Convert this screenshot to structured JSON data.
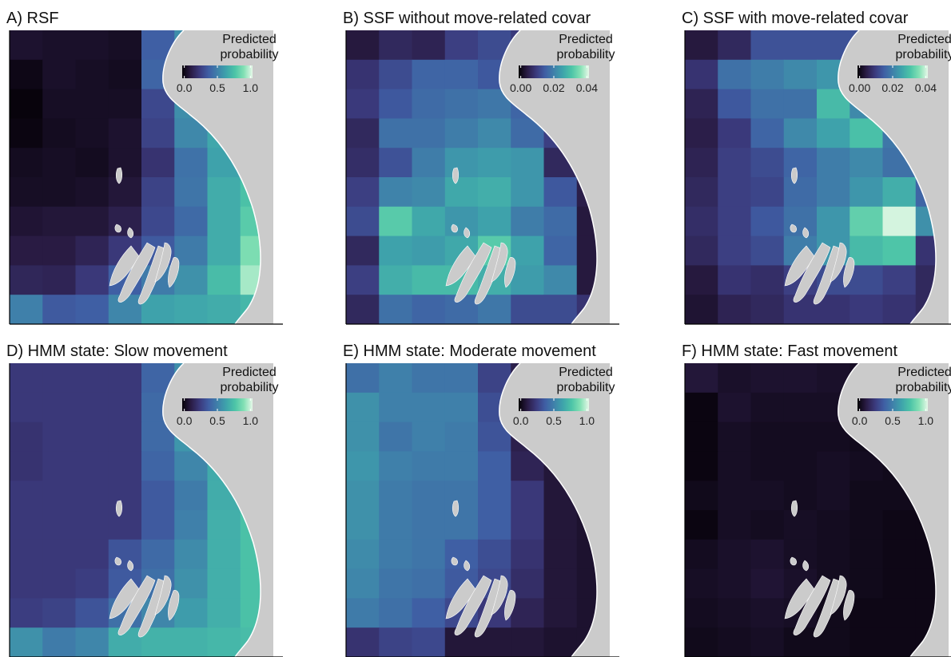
{
  "colors": {
    "land": "#cbcbcb",
    "coast_line": "#ffffff",
    "axis": "#000000",
    "colormap": [
      "#050107",
      "#2a1c45",
      "#3b3a7d",
      "#3f5ea4",
      "#3f80aa",
      "#3ea3ab",
      "#4cc4a7",
      "#82e0b4",
      "#e6f8e8"
    ]
  },
  "chart_data": [
    {
      "type": "heatmap",
      "title": "A) RSF",
      "legend": {
        "title": [
          "Predicted",
          "probability"
        ],
        "ticks": [
          "0.0",
          "0.5",
          "1.0"
        ],
        "range": [
          0,
          1
        ],
        "placement": "top-right"
      },
      "values": [
        [
          0.08,
          0.07,
          0.07,
          0.06,
          0.38,
          0.55,
          null,
          null
        ],
        [
          0.03,
          0.07,
          0.06,
          0.05,
          0.4,
          0.55,
          null,
          null
        ],
        [
          0.01,
          0.06,
          0.06,
          0.06,
          0.3,
          0.55,
          null,
          null
        ],
        [
          0.02,
          0.05,
          0.06,
          0.08,
          0.28,
          0.53,
          0.64,
          null
        ],
        [
          0.05,
          0.06,
          0.05,
          0.08,
          0.22,
          0.45,
          0.62,
          0.72
        ],
        [
          0.06,
          0.06,
          0.07,
          0.1,
          0.28,
          0.46,
          0.66,
          0.74
        ],
        [
          0.09,
          0.1,
          0.1,
          0.14,
          0.3,
          0.42,
          0.66,
          0.78
        ],
        [
          0.12,
          0.12,
          0.16,
          0.24,
          0.36,
          0.48,
          0.66,
          0.86
        ],
        [
          0.17,
          0.16,
          0.24,
          0.38,
          0.48,
          0.56,
          0.72,
          0.92
        ],
        [
          0.5,
          0.36,
          0.38,
          0.52,
          0.62,
          0.64,
          0.66,
          0.7
        ]
      ]
    },
    {
      "type": "heatmap",
      "title": "B) SSF without move-related covar",
      "legend": {
        "title": [
          "Predicted",
          "probability"
        ],
        "ticks": [
          "0.00",
          "0.02",
          "0.04"
        ],
        "range": [
          0,
          0.045
        ],
        "placement": "top-right"
      },
      "values": [
        [
          0.005,
          0.008,
          0.007,
          0.012,
          0.014,
          0.011,
          null,
          null
        ],
        [
          0.01,
          0.014,
          0.018,
          0.018,
          0.016,
          0.012,
          null,
          null
        ],
        [
          0.011,
          0.016,
          0.019,
          0.02,
          0.021,
          0.018,
          null,
          null
        ],
        [
          0.008,
          0.02,
          0.02,
          0.022,
          0.024,
          0.019,
          0.012,
          null
        ],
        [
          0.009,
          0.015,
          0.022,
          0.026,
          0.027,
          0.026,
          0.008,
          null
        ],
        [
          0.012,
          0.023,
          0.024,
          0.029,
          0.03,
          0.026,
          0.016,
          0.006
        ],
        [
          0.014,
          0.035,
          0.029,
          0.026,
          0.028,
          0.022,
          0.019,
          0.005
        ],
        [
          0.008,
          0.028,
          0.027,
          0.029,
          0.035,
          0.028,
          0.018,
          0.005
        ],
        [
          0.012,
          0.03,
          0.032,
          0.032,
          0.03,
          0.027,
          0.024,
          0.005
        ],
        [
          0.008,
          0.02,
          0.018,
          0.019,
          0.021,
          0.014,
          0.014,
          0.01
        ]
      ]
    },
    {
      "type": "heatmap",
      "title": "C) SSF with move-related covar",
      "legend": {
        "title": [
          "Predicted",
          "probability"
        ],
        "ticks": [
          "0.00",
          "0.02",
          "0.04"
        ],
        "range": [
          0,
          0.045
        ],
        "placement": "top-right"
      },
      "values": [
        [
          0.005,
          0.008,
          0.015,
          0.015,
          0.015,
          0.015,
          null,
          null
        ],
        [
          0.01,
          0.02,
          0.022,
          0.024,
          0.026,
          0.018,
          null,
          null
        ],
        [
          0.007,
          0.016,
          0.02,
          0.02,
          0.032,
          0.024,
          0.016,
          null
        ],
        [
          0.006,
          0.011,
          0.018,
          0.024,
          0.028,
          0.033,
          0.021,
          null
        ],
        [
          0.007,
          0.012,
          0.014,
          0.018,
          0.022,
          0.024,
          0.02,
          0.008
        ],
        [
          0.008,
          0.012,
          0.013,
          0.019,
          0.022,
          0.026,
          0.03,
          0.018
        ],
        [
          0.009,
          0.012,
          0.016,
          0.02,
          0.026,
          0.036,
          0.044,
          0.025
        ],
        [
          0.008,
          0.012,
          0.014,
          0.022,
          0.026,
          0.032,
          0.034,
          0.01
        ],
        [
          0.005,
          0.01,
          0.009,
          0.012,
          0.014,
          0.014,
          0.012,
          0.008
        ],
        [
          0.004,
          0.007,
          0.008,
          0.01,
          0.01,
          0.011,
          0.01,
          0.008
        ]
      ]
    },
    {
      "type": "heatmap",
      "title": "D) HMM state: Slow movement",
      "legend": {
        "title": [
          "Predicted",
          "probability"
        ],
        "ticks": [
          "0.0",
          "0.5",
          "1.0"
        ],
        "range": [
          0,
          1
        ],
        "placement": "top-right"
      },
      "values": [
        [
          0.24,
          0.24,
          0.24,
          0.24,
          0.4,
          0.55,
          null,
          null
        ],
        [
          0.24,
          0.24,
          0.24,
          0.24,
          0.42,
          0.56,
          null,
          null
        ],
        [
          0.22,
          0.24,
          0.24,
          0.24,
          0.42,
          0.58,
          0.66,
          null
        ],
        [
          0.22,
          0.24,
          0.24,
          0.24,
          0.4,
          0.52,
          0.65,
          null
        ],
        [
          0.24,
          0.24,
          0.24,
          0.24,
          0.36,
          0.48,
          0.66,
          0.74
        ],
        [
          0.24,
          0.24,
          0.24,
          0.24,
          0.36,
          0.5,
          0.67,
          0.74
        ],
        [
          0.24,
          0.24,
          0.24,
          0.34,
          0.42,
          0.54,
          0.67,
          0.74
        ],
        [
          0.24,
          0.24,
          0.26,
          0.36,
          0.44,
          0.56,
          0.67,
          0.74
        ],
        [
          0.26,
          0.28,
          0.34,
          0.44,
          0.52,
          0.6,
          0.67,
          0.74
        ],
        [
          0.56,
          0.48,
          0.52,
          0.66,
          0.68,
          0.68,
          0.7,
          0.72
        ]
      ]
    },
    {
      "type": "heatmap",
      "title": "E) HMM state: Moderate movement",
      "legend": {
        "title": [
          "Predicted",
          "probability"
        ],
        "ticks": [
          "0.0",
          "0.5",
          "1.0"
        ],
        "range": [
          0,
          1
        ],
        "placement": "top-right"
      },
      "values": [
        [
          0.44,
          0.5,
          0.46,
          0.46,
          0.28,
          0.14,
          null,
          null
        ],
        [
          0.56,
          0.5,
          0.5,
          0.5,
          0.32,
          0.14,
          null,
          null
        ],
        [
          0.56,
          0.46,
          0.5,
          0.48,
          0.34,
          0.14,
          0.1,
          null
        ],
        [
          0.58,
          0.5,
          0.48,
          0.48,
          0.38,
          0.16,
          0.1,
          null
        ],
        [
          0.56,
          0.48,
          0.46,
          0.46,
          0.38,
          0.24,
          0.1,
          0.08
        ],
        [
          0.56,
          0.48,
          0.46,
          0.46,
          0.38,
          0.24,
          0.1,
          0.08
        ],
        [
          0.54,
          0.48,
          0.46,
          0.38,
          0.32,
          0.22,
          0.1,
          0.08
        ],
        [
          0.52,
          0.46,
          0.44,
          0.36,
          0.3,
          0.2,
          0.1,
          0.08
        ],
        [
          0.48,
          0.44,
          0.38,
          0.3,
          0.24,
          0.16,
          0.1,
          0.08
        ],
        [
          0.22,
          0.28,
          0.3,
          0.1,
          0.1,
          0.1,
          0.08,
          0.08
        ]
      ]
    },
    {
      "type": "heatmap",
      "title": "F) HMM state: Fast movement",
      "legend": {
        "title": [
          "Predicted",
          "probability"
        ],
        "ticks": [
          "0.0",
          "0.5",
          "1.0"
        ],
        "range": [
          0,
          1
        ],
        "placement": "top-right"
      },
      "values": [
        [
          0.1,
          0.07,
          0.08,
          0.08,
          0.07,
          0.06,
          null,
          null
        ],
        [
          0.02,
          0.08,
          0.06,
          0.06,
          0.06,
          0.05,
          null,
          null
        ],
        [
          0.02,
          0.06,
          0.05,
          0.05,
          0.05,
          0.04,
          0.04,
          null
        ],
        [
          0.02,
          0.06,
          0.05,
          0.05,
          0.06,
          0.05,
          0.04,
          null
        ],
        [
          0.04,
          0.06,
          0.06,
          0.05,
          0.06,
          0.04,
          0.04,
          0.03
        ],
        [
          0.02,
          0.06,
          0.05,
          0.06,
          0.05,
          0.04,
          0.03,
          0.03
        ],
        [
          0.05,
          0.07,
          0.08,
          0.06,
          0.05,
          0.04,
          0.03,
          0.03
        ],
        [
          0.06,
          0.07,
          0.09,
          0.07,
          0.05,
          0.04,
          0.03,
          0.03
        ],
        [
          0.05,
          0.06,
          0.07,
          0.06,
          0.04,
          0.03,
          0.03,
          0.03
        ],
        [
          0.04,
          0.05,
          0.06,
          0.04,
          0.04,
          0.03,
          0.03,
          0.03
        ]
      ]
    }
  ]
}
